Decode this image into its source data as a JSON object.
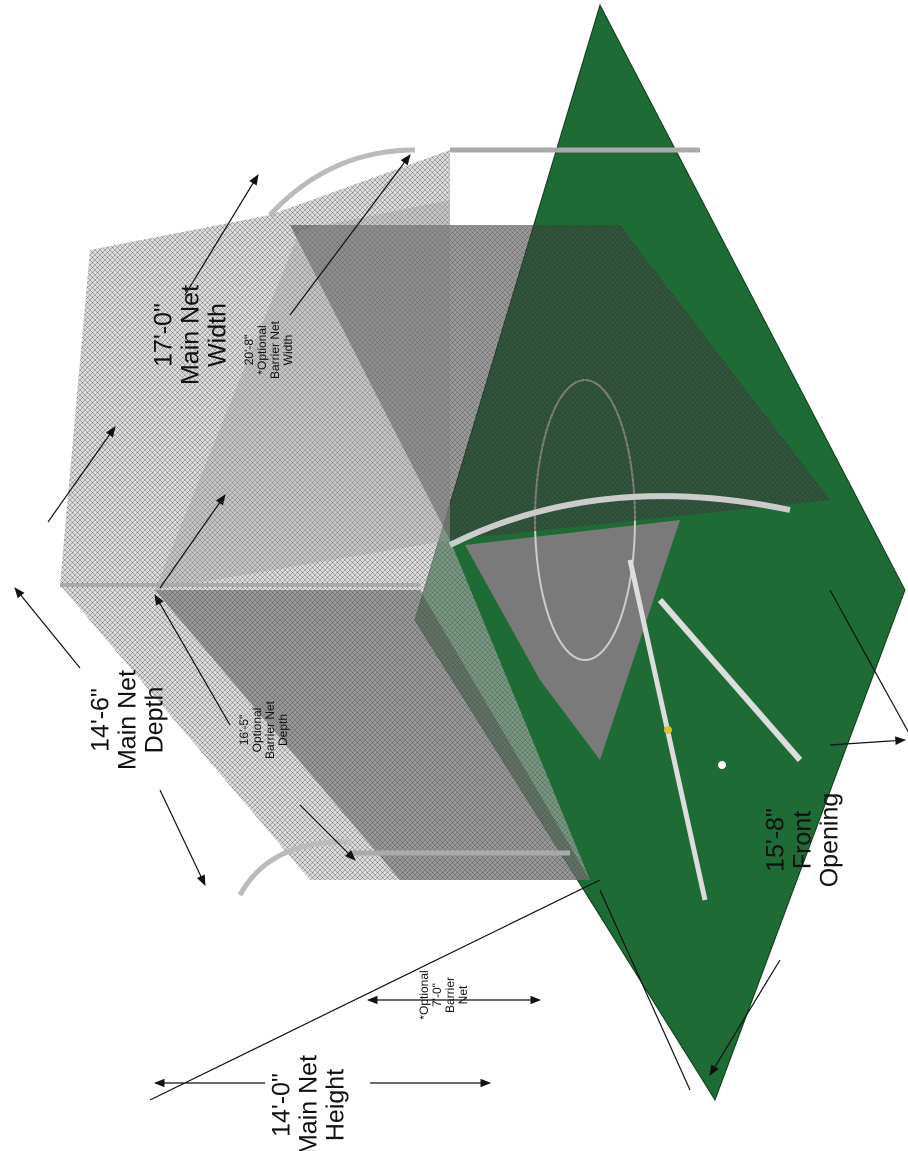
{
  "dimensions": [
    {
      "lines": [
        "17'-0\"",
        "Main Net",
        "Width"
      ]
    },
    {
      "lines": [
        "20'-8\"",
        "*Optional",
        "Barrier Net",
        "Width"
      ]
    },
    {
      "lines": [
        "14'-6\"",
        "Main Net",
        "Depth"
      ]
    },
    {
      "lines": [
        "16'-5\"",
        "Optional",
        "Barrier Net",
        "Depth"
      ]
    },
    {
      "lines": [
        "*Optional",
        "7'-0\"",
        "Barrier",
        "Net"
      ]
    },
    {
      "lines": [
        "14'-0\"",
        "Main Net",
        "Height"
      ]
    },
    {
      "lines": [
        "15'-8\"",
        "Front",
        "Opening"
      ]
    }
  ]
}
